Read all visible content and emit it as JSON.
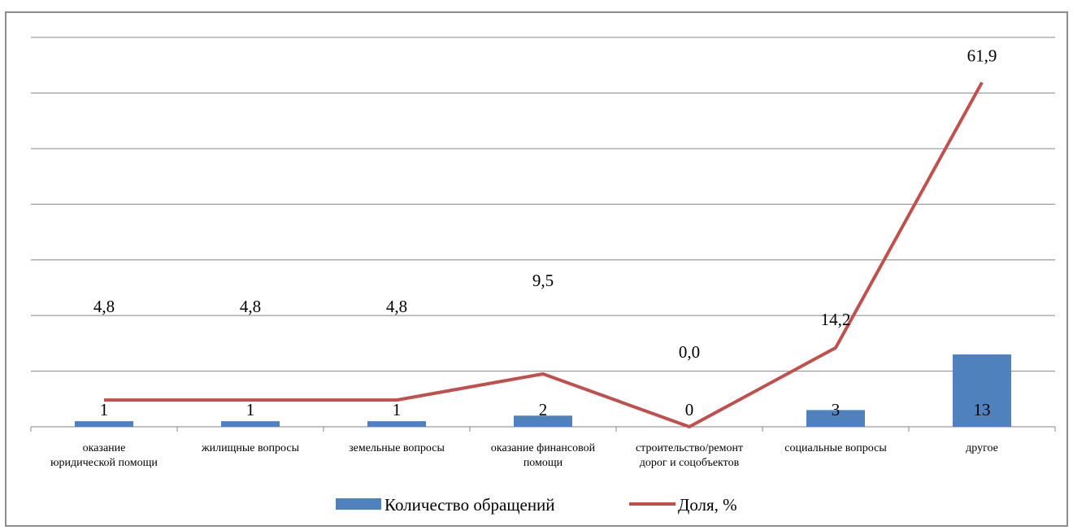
{
  "chart_data": {
    "type": "bar",
    "categories": [
      [
        "оказание",
        "юридической помощи"
      ],
      [
        "жилищные  вопросы"
      ],
      [
        "земельные вопросы"
      ],
      [
        "оказание финансовой",
        "помощи"
      ],
      [
        "строительство/ремонт",
        "дорог и соцобъектов"
      ],
      [
        "социальные вопросы"
      ],
      [
        "другое"
      ]
    ],
    "series": [
      {
        "name": "Количество обращений",
        "kind": "bar",
        "color": "#4f81bd",
        "values": [
          1,
          1,
          1,
          2,
          0,
          3,
          13
        ],
        "labels": [
          "1",
          "1",
          "1",
          "2",
          "0",
          "3",
          "13"
        ]
      },
      {
        "name": "Доля, %",
        "kind": "line",
        "color": "#c0504d",
        "values": [
          4.8,
          4.8,
          4.8,
          9.5,
          0.0,
          14.2,
          61.9
        ],
        "labels": [
          "4,8",
          "4,8",
          "4,8",
          "9,5",
          "0,0",
          "14,2",
          "61,9"
        ]
      }
    ],
    "ylim": [
      0,
      70
    ],
    "gridlines": true,
    "legend_position": "bottom"
  }
}
